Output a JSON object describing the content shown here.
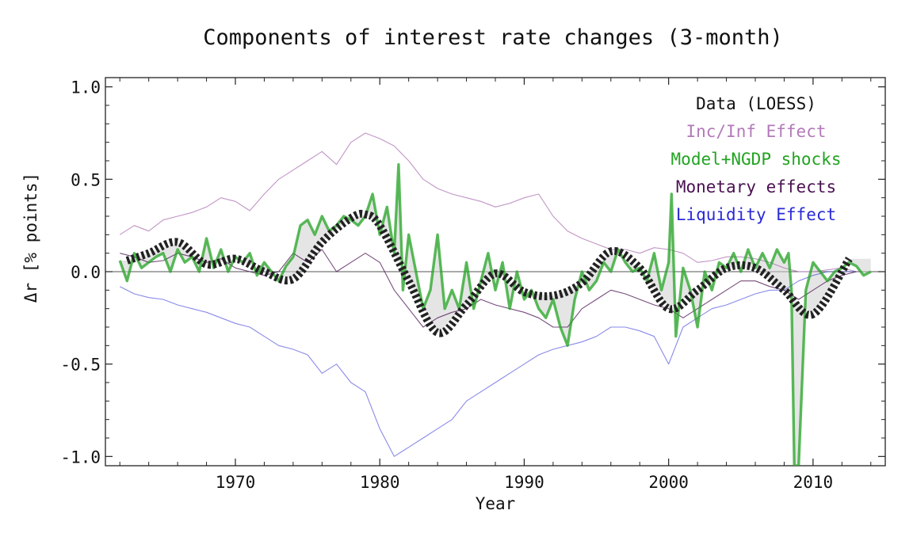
{
  "chart_data": {
    "type": "line",
    "title": "Components of interest rate changes (3-month)",
    "xlabel": "Year",
    "ylabel": "Δr [% points]",
    "xlim": [
      1961,
      2015
    ],
    "ylim": [
      -1.05,
      1.05
    ],
    "x_ticks": [
      1970,
      1980,
      1990,
      2000,
      2010
    ],
    "y_ticks": [
      1.0,
      0.5,
      0.0,
      -0.5,
      -1.0
    ],
    "x_tick_labels": [
      "1970",
      "1980",
      "1990",
      "2000",
      "2010"
    ],
    "y_tick_labels": [
      "1.0",
      "0.5",
      "0.0",
      "-0.5",
      "-1.0"
    ],
    "legend_position": "top-right",
    "legend": [
      {
        "label": "Data (LOESS)",
        "color": "#111111"
      },
      {
        "label": "Inc/Inf Effect",
        "color": "#b27ab8"
      },
      {
        "label": "Model+NGDP shocks",
        "color": "#22a322"
      },
      {
        "label": "Monetary effects",
        "color": "#4a1152"
      },
      {
        "label": "Liquidity Effect",
        "color": "#2a2ad6"
      }
    ],
    "series": [
      {
        "name": "Inc/Inf Effect",
        "color": "#b27ab8",
        "x": [
          1962,
          1963,
          1964,
          1965,
          1966,
          1967,
          1968,
          1969,
          1970,
          1971,
          1972,
          1973,
          1974,
          1975,
          1976,
          1977,
          1978,
          1979,
          1980,
          1981,
          1982,
          1983,
          1984,
          1985,
          1986,
          1987,
          1988,
          1989,
          1990,
          1991,
          1992,
          1993,
          1994,
          1995,
          1996,
          1997,
          1998,
          1999,
          2000,
          2001,
          2002,
          2003,
          2004,
          2005,
          2006,
          2007,
          2008,
          2009,
          2010,
          2011,
          2012,
          2013
        ],
        "values": [
          0.2,
          0.25,
          0.22,
          0.28,
          0.3,
          0.32,
          0.35,
          0.4,
          0.38,
          0.33,
          0.42,
          0.5,
          0.55,
          0.6,
          0.65,
          0.58,
          0.7,
          0.75,
          0.72,
          0.68,
          0.6,
          0.5,
          0.45,
          0.42,
          0.4,
          0.38,
          0.35,
          0.37,
          0.4,
          0.42,
          0.3,
          0.22,
          0.18,
          0.15,
          0.12,
          0.12,
          0.1,
          0.13,
          0.12,
          0.1,
          0.05,
          0.06,
          0.08,
          0.08,
          0.07,
          0.05,
          0.02,
          0.0,
          0.0,
          0.01,
          0.02,
          0.0
        ]
      },
      {
        "name": "Liquidity Effect",
        "color": "#2a2ad6",
        "x": [
          1962,
          1963,
          1964,
          1965,
          1966,
          1967,
          1968,
          1969,
          1970,
          1971,
          1972,
          1973,
          1974,
          1975,
          1976,
          1977,
          1978,
          1979,
          1980,
          1981,
          1982,
          1983,
          1984,
          1985,
          1986,
          1987,
          1988,
          1989,
          1990,
          1991,
          1992,
          1993,
          1994,
          1995,
          1996,
          1997,
          1998,
          1999,
          2000,
          2001,
          2002,
          2003,
          2004,
          2005,
          2006,
          2007,
          2008,
          2009,
          2010,
          2011,
          2012,
          2013
        ],
        "values": [
          -0.08,
          -0.12,
          -0.14,
          -0.15,
          -0.18,
          -0.2,
          -0.22,
          -0.25,
          -0.28,
          -0.3,
          -0.35,
          -0.4,
          -0.42,
          -0.45,
          -0.55,
          -0.5,
          -0.6,
          -0.65,
          -0.85,
          -1.0,
          -0.95,
          -0.9,
          -0.85,
          -0.8,
          -0.7,
          -0.65,
          -0.6,
          -0.55,
          -0.5,
          -0.45,
          -0.42,
          -0.4,
          -0.38,
          -0.35,
          -0.3,
          -0.3,
          -0.32,
          -0.35,
          -0.5,
          -0.3,
          -0.25,
          -0.2,
          -0.18,
          -0.15,
          -0.12,
          -0.1,
          -0.1,
          -0.05,
          -0.02,
          0.0,
          0.0,
          0.0
        ]
      },
      {
        "name": "Monetary effects",
        "color": "#4a1152",
        "x": [
          1962,
          1963,
          1964,
          1965,
          1966,
          1967,
          1968,
          1969,
          1970,
          1971,
          1972,
          1973,
          1974,
          1975,
          1976,
          1977,
          1978,
          1979,
          1980,
          1981,
          1982,
          1983,
          1984,
          1985,
          1986,
          1987,
          1988,
          1989,
          1990,
          1991,
          1992,
          1993,
          1994,
          1995,
          1996,
          1997,
          1998,
          1999,
          2000,
          2001,
          2002,
          2003,
          2004,
          2005,
          2006,
          2007,
          2008,
          2009,
          2010,
          2011,
          2012,
          2013
        ],
        "values": [
          0.1,
          0.08,
          0.05,
          0.06,
          0.1,
          0.08,
          0.05,
          0.07,
          0.02,
          0.0,
          -0.02,
          0.0,
          0.1,
          0.05,
          0.12,
          0.0,
          0.05,
          0.1,
          0.05,
          -0.1,
          -0.2,
          -0.3,
          -0.25,
          -0.22,
          -0.2,
          -0.15,
          -0.18,
          -0.2,
          -0.22,
          -0.25,
          -0.3,
          -0.3,
          -0.2,
          -0.15,
          -0.1,
          -0.12,
          -0.15,
          -0.18,
          -0.2,
          -0.25,
          -0.2,
          -0.15,
          -0.1,
          -0.05,
          -0.05,
          -0.08,
          -0.1,
          -0.15,
          -0.1,
          -0.05,
          -0.02,
          0.0
        ]
      },
      {
        "name": "Model+NGDP shocks",
        "color": "#22a322",
        "x": [
          1962,
          1962.5,
          1963,
          1963.5,
          1964,
          1964.5,
          1965,
          1965.5,
          1966,
          1966.5,
          1967,
          1967.5,
          1968,
          1968.5,
          1969,
          1969.5,
          1970,
          1970.5,
          1971,
          1971.5,
          1972,
          1972.5,
          1973,
          1973.5,
          1974,
          1974.5,
          1975,
          1975.5,
          1976,
          1976.5,
          1977,
          1977.5,
          1978,
          1978.5,
          1979,
          1979.5,
          1980,
          1980.5,
          1981,
          1981.3,
          1981.6,
          1982,
          1982.5,
          1983,
          1983.5,
          1984,
          1984.5,
          1985,
          1985.5,
          1986,
          1986.5,
          1987,
          1987.5,
          1988,
          1988.5,
          1989,
          1989.5,
          1990,
          1990.5,
          1991,
          1991.5,
          1992,
          1992.5,
          1993,
          1993.5,
          1994,
          1994.5,
          1995,
          1995.5,
          1996,
          1996.5,
          1997,
          1997.5,
          1998,
          1998.5,
          1999,
          1999.5,
          2000,
          2000.2,
          2000.5,
          2001,
          2001.5,
          2002,
          2002.5,
          2003,
          2003.5,
          2004,
          2004.5,
          2005,
          2005.5,
          2006,
          2006.5,
          2007,
          2007.5,
          2008,
          2008.3,
          2008.5,
          2008.7,
          2009,
          2009.5,
          2010,
          2010.5,
          2011,
          2011.5,
          2012,
          2012.5,
          2013,
          2013.5,
          2014
        ],
        "values": [
          0.06,
          -0.05,
          0.1,
          0.02,
          0.05,
          0.08,
          0.1,
          0.0,
          0.12,
          0.05,
          0.08,
          0.0,
          0.18,
          0.02,
          0.12,
          0.0,
          0.08,
          0.05,
          0.1,
          -0.02,
          0.05,
          0.0,
          -0.05,
          0.03,
          0.08,
          0.25,
          0.28,
          0.2,
          0.3,
          0.22,
          0.25,
          0.3,
          0.28,
          0.25,
          0.3,
          0.42,
          0.2,
          0.35,
          0.1,
          0.58,
          -0.1,
          0.2,
          0.0,
          -0.2,
          -0.1,
          0.2,
          -0.2,
          -0.1,
          -0.2,
          0.05,
          -0.2,
          -0.05,
          0.1,
          -0.1,
          0.05,
          -0.2,
          0.0,
          -0.15,
          -0.1,
          -0.2,
          -0.25,
          -0.15,
          -0.3,
          -0.4,
          -0.15,
          0.0,
          -0.1,
          -0.05,
          0.05,
          0.0,
          0.12,
          0.05,
          0.0,
          0.02,
          -0.05,
          0.1,
          -0.1,
          0.05,
          0.42,
          -0.35,
          0.02,
          -0.1,
          -0.3,
          0.0,
          -0.1,
          0.05,
          0.02,
          0.1,
          0.0,
          0.12,
          0.02,
          0.1,
          0.02,
          0.12,
          0.05,
          0.1,
          -0.1,
          -1.05,
          -1.05,
          -0.1,
          0.05,
          0.0,
          -0.05,
          0.0,
          0.02,
          0.05,
          0.03,
          -0.02,
          0.0
        ]
      },
      {
        "name": "Data (LOESS)",
        "color": "#111111",
        "x": [
          1962.5,
          1964,
          1966,
          1968,
          1970,
          1972,
          1974,
          1976,
          1978,
          1979,
          1980,
          1982,
          1984,
          1986,
          1988,
          1990,
          1992,
          1994,
          1996,
          1998,
          2000,
          2002,
          2004,
          2006,
          2008,
          2010,
          2012.5
        ],
        "values": [
          0.06,
          0.1,
          0.16,
          0.04,
          0.07,
          0.0,
          -0.04,
          0.16,
          0.29,
          0.31,
          0.25,
          -0.05,
          -0.33,
          -0.18,
          -0.01,
          -0.11,
          -0.13,
          -0.06,
          0.11,
          0.02,
          -0.2,
          -0.1,
          0.02,
          0.02,
          -0.1,
          -0.23,
          0.07
        ]
      }
    ]
  }
}
